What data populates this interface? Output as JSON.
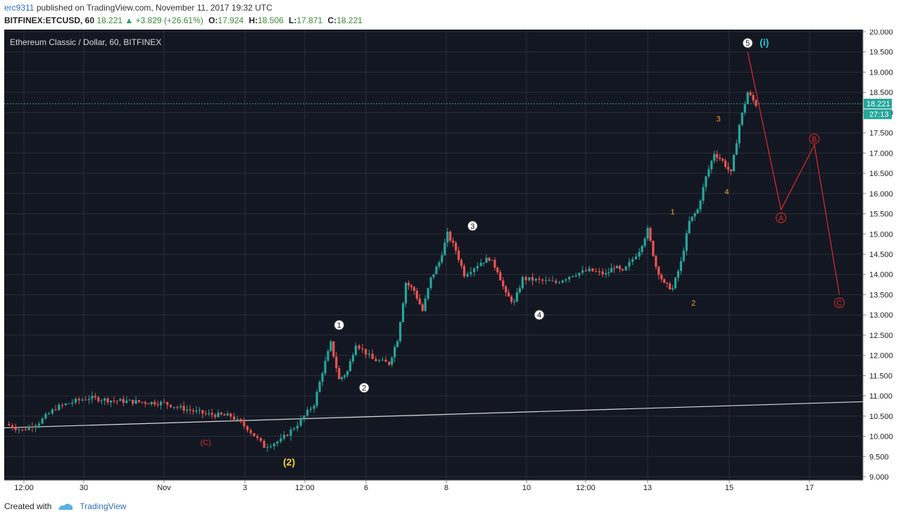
{
  "header": {
    "author": "erc9311",
    "published_text": "published on TradingView.com, November 11, 2017 19:32 UTC",
    "symbol": "BITFINEX:ETCUSD, 60",
    "last": "18.221",
    "change": "+3.829 (+26.61%)",
    "o_label": "O:",
    "o": "17.924",
    "h_label": "H:",
    "h": "18.506",
    "l_label": "L:",
    "l": "17.871",
    "c_label": "C:",
    "c": "18.221"
  },
  "footer": {
    "created_with": "Created with",
    "brand": "TradingView"
  },
  "colors": {
    "bg": "#131722",
    "grid": "#2a2e39",
    "up": "#26a69a",
    "down": "#ef5350",
    "wave": "#e02a2a",
    "yellow": "#f5d328",
    "orange": "#f0a030",
    "cyan": "#26c6da"
  },
  "chart_data": {
    "type": "candlestick",
    "title": "Ethereum Classic / Dollar, 60, BITFINEX",
    "ylim": [
      9.0,
      20.0
    ],
    "yticks": [
      "20.000",
      "19.500",
      "19.000",
      "18.500",
      "18.000",
      "17.500",
      "17.000",
      "16.500",
      "16.000",
      "15.500",
      "15.000",
      "14.500",
      "14.000",
      "13.500",
      "13.000",
      "12.500",
      "12.000",
      "11.500",
      "11.000",
      "10.500",
      "10.000",
      "9.500",
      "9.000"
    ],
    "xticks": [
      "12:00",
      "30",
      "Nov",
      "3",
      "12:00",
      "6",
      "8",
      "10",
      "12:00",
      "13",
      "15",
      "17"
    ],
    "price_label": "18.221",
    "countdown": "27:13",
    "trendline": [
      10.0,
      10.82
    ],
    "path": [
      [
        0,
        10.3
      ],
      [
        2,
        10.15
      ],
      [
        4,
        10.35
      ],
      [
        6,
        10.7
      ],
      [
        8,
        10.85
      ],
      [
        10,
        10.95
      ],
      [
        13,
        10.88
      ],
      [
        16,
        10.85
      ],
      [
        19,
        10.82
      ],
      [
        21,
        10.7
      ],
      [
        24,
        10.55
      ],
      [
        27,
        10.5
      ],
      [
        29,
        10.2
      ],
      [
        31,
        9.75
      ],
      [
        33,
        9.9
      ],
      [
        35,
        10.3
      ],
      [
        37,
        10.8
      ],
      [
        38,
        11.6
      ],
      [
        39,
        12.3
      ],
      [
        40,
        11.4
      ],
      [
        41,
        11.6
      ],
      [
        42,
        12.3
      ],
      [
        44,
        11.9
      ],
      [
        46,
        11.8
      ],
      [
        47,
        12.4
      ],
      [
        48,
        13.8
      ],
      [
        49,
        13.6
      ],
      [
        50,
        13.1
      ],
      [
        51,
        13.9
      ],
      [
        52,
        14.3
      ],
      [
        53,
        15.0
      ],
      [
        54,
        14.6
      ],
      [
        55,
        14.0
      ],
      [
        57,
        14.3
      ],
      [
        58,
        14.4
      ],
      [
        59,
        14.1
      ],
      [
        60,
        13.5
      ],
      [
        61,
        13.3
      ],
      [
        62,
        13.9
      ],
      [
        64,
        13.85
      ],
      [
        66,
        13.8
      ],
      [
        68,
        14.0
      ],
      [
        70,
        14.1
      ],
      [
        72,
        14.0
      ],
      [
        73,
        14.2
      ],
      [
        74,
        14.05
      ],
      [
        76,
        14.6
      ],
      [
        77,
        15.1
      ],
      [
        78,
        14.2
      ],
      [
        79,
        13.75
      ],
      [
        80,
        13.65
      ],
      [
        81,
        14.3
      ],
      [
        82,
        15.3
      ],
      [
        83,
        15.6
      ],
      [
        84,
        16.4
      ],
      [
        85,
        17.0
      ],
      [
        86,
        16.8
      ],
      [
        87,
        16.5
      ],
      [
        88,
        17.7
      ],
      [
        89,
        18.5
      ],
      [
        90,
        18.2
      ]
    ],
    "wave_labels": [
      {
        "text": "(C)",
        "x": 24,
        "y": 9.85,
        "style": "red"
      },
      {
        "text": "(2)",
        "x": 34,
        "y": 9.35,
        "style": "yellow"
      },
      {
        "text": "1",
        "x": 40,
        "y": 12.75,
        "style": "circle"
      },
      {
        "text": "2",
        "x": 43,
        "y": 11.2,
        "style": "circle"
      },
      {
        "text": "3",
        "x": 56,
        "y": 15.2,
        "style": "circle"
      },
      {
        "text": "4",
        "x": 64,
        "y": 13.0,
        "style": "circle"
      },
      {
        "text": "5",
        "x": 89,
        "y": 19.72,
        "style": "circle"
      },
      {
        "text": "(i)",
        "x": 91,
        "y": 19.72,
        "style": "cyan"
      },
      {
        "text": "1",
        "x": 80,
        "y": 15.55,
        "style": "orange"
      },
      {
        "text": "2",
        "x": 82.5,
        "y": 13.3,
        "style": "orange"
      },
      {
        "text": "3",
        "x": 85.5,
        "y": 17.85,
        "style": "orange"
      },
      {
        "text": "4",
        "x": 86.5,
        "y": 16.05,
        "style": "orange"
      },
      {
        "text": "A",
        "x": 93,
        "y": 15.4,
        "style": "redcircle"
      },
      {
        "text": "B",
        "x": 97,
        "y": 17.35,
        "style": "redcircle"
      },
      {
        "text": "C",
        "x": 100,
        "y": 13.3,
        "style": "redcircle"
      }
    ],
    "projection": [
      [
        89,
        19.5
      ],
      [
        93,
        15.6
      ],
      [
        97,
        17.2
      ],
      [
        100,
        13.5
      ]
    ]
  }
}
